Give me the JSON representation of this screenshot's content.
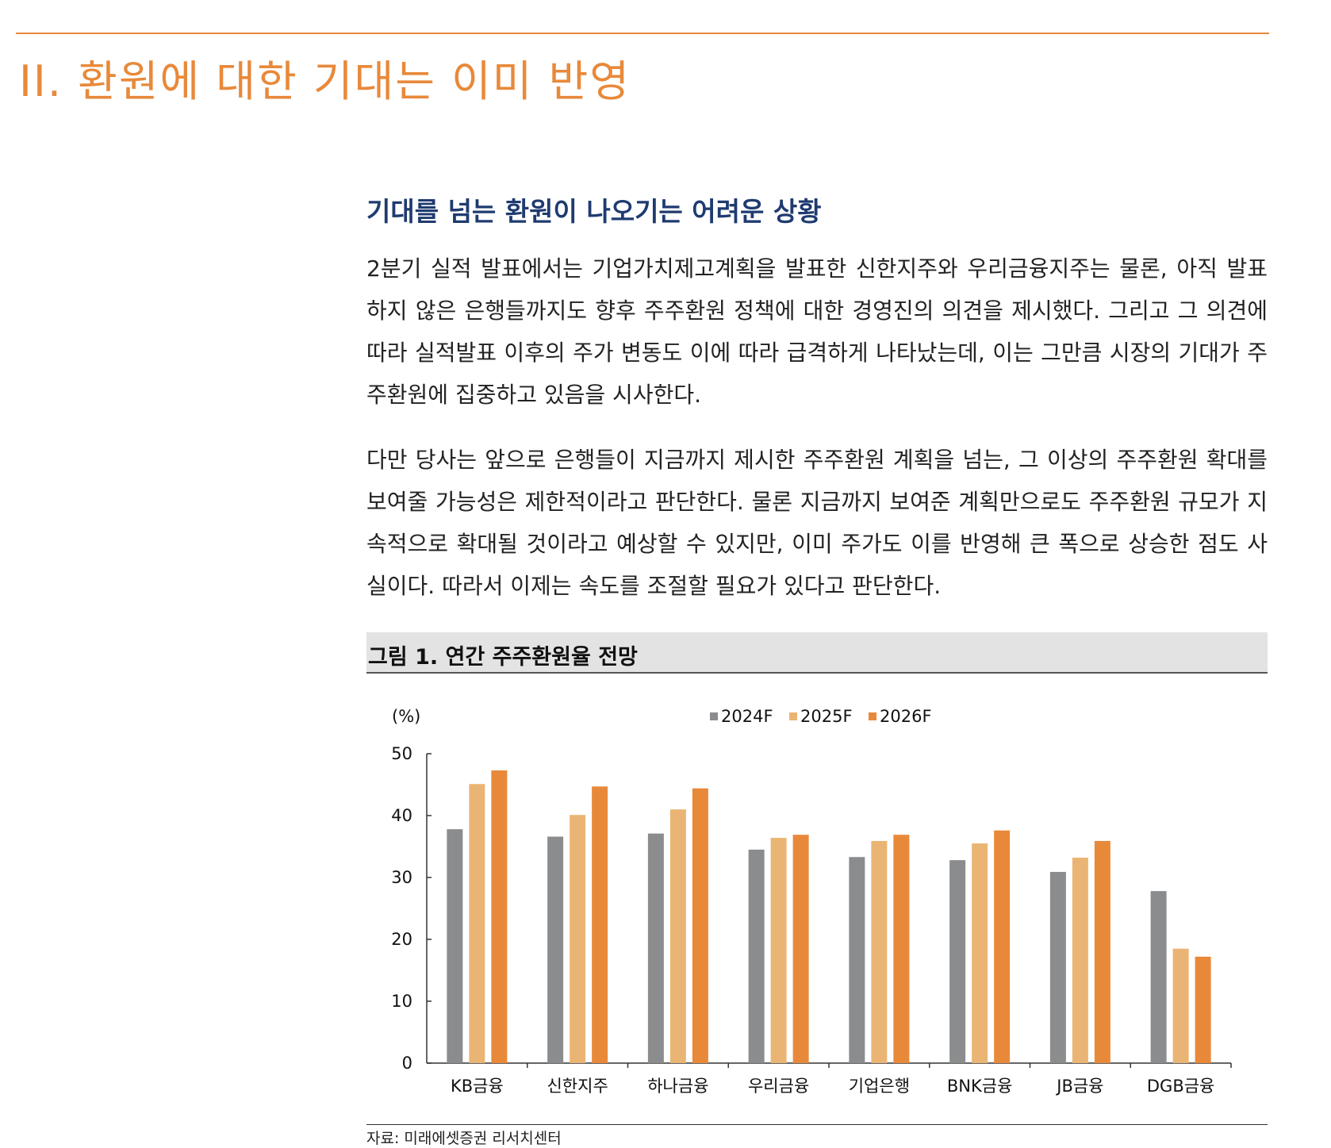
{
  "section_title": "II. 환원에 대한 기대는 이미 반영",
  "subheading": "기대를 넘는 환원이 나오기는 어려운 상황",
  "paragraphs": [
    "2분기 실적 발표에서는 기업가치제고계획을 발표한 신한지주와 우리금융지주는 물론, 아직 발표하지 않은 은행들까지도 향후 주주환원 정책에 대한 경영진의 의견을 제시했다. 그리고 그 의견에 따라 실적발표 이후의 주가 변동도 이에 따라 급격하게 나타났는데, 이는 그만큼 시장의 기대가 주주환원에 집중하고 있음을 시사한다.",
    "다만 당사는 앞으로 은행들이 지금까지 제시한 주주환원 계획을 넘는, 그 이상의 주주환원 확대를 보여줄 가능성은 제한적이라고 판단한다. 물론 지금까지 보여준 계획만으로도 주주환원 규모가 지속적으로 확대될 것이라고 예상할 수 있지만, 이미 주가도 이를 반영해 큰 폭으로 상승한 점도 사실이다. 따라서 이제는 속도를 조절할 필요가 있다고 판단한다."
  ],
  "figure_title": "그림 1. 연간 주주환원율 전망",
  "source": "자료: 미래에셋증권 리서치센터",
  "colors": {
    "accent": "#e8893a",
    "heading": "#1f3b70"
  },
  "chart_data": {
    "type": "bar",
    "unit_label": "(%)",
    "categories": [
      "KB금융",
      "신한지주",
      "하나금융",
      "우리금융",
      "기업은행",
      "BNK금융",
      "JB금융",
      "DGB금융"
    ],
    "series": [
      {
        "name": "2024F",
        "color": "#8a8c8e",
        "values": [
          37.8,
          36.6,
          37.1,
          34.5,
          33.3,
          32.8,
          30.9,
          27.8
        ]
      },
      {
        "name": "2025F",
        "color": "#eab574",
        "values": [
          45.1,
          40.1,
          41.0,
          36.4,
          35.9,
          35.5,
          33.2,
          18.5
        ]
      },
      {
        "name": "2026F",
        "color": "#e8893a",
        "values": [
          47.3,
          44.7,
          44.4,
          36.9,
          36.9,
          37.6,
          35.9,
          17.2
        ]
      }
    ],
    "ylim": [
      0,
      50
    ],
    "yticks": [
      0,
      10,
      20,
      30,
      40,
      50
    ],
    "legend_position": "top-center",
    "grid": false
  }
}
